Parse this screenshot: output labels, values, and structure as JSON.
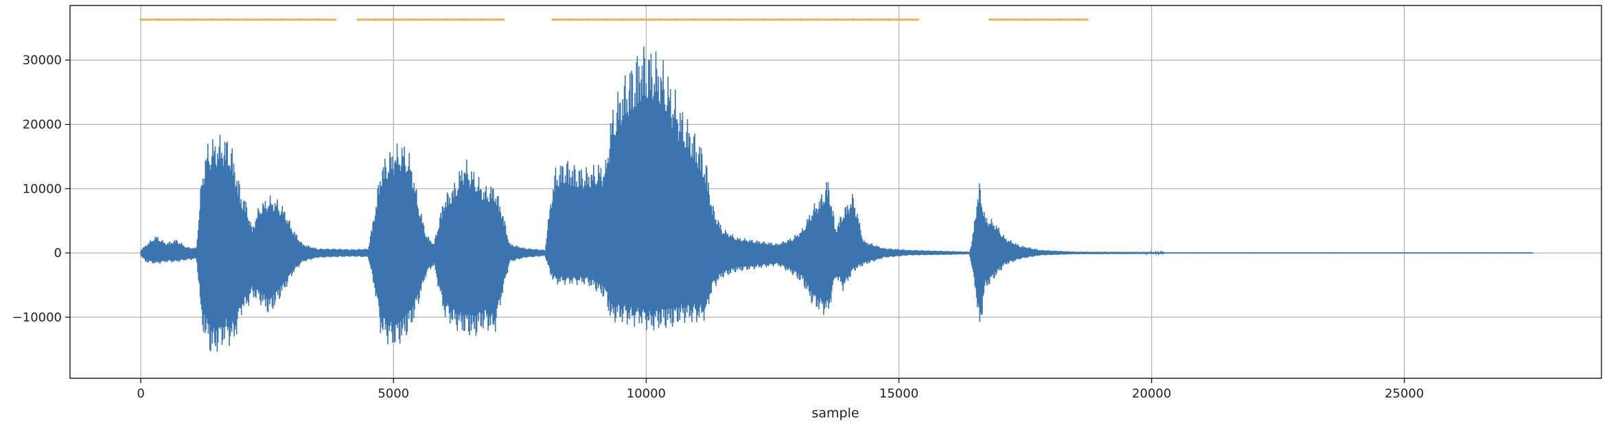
{
  "chart_data": {
    "type": "line",
    "title": "",
    "xlabel": "sample",
    "ylabel": "",
    "xlim": [
      -1400,
      28900
    ],
    "ylim": [
      -19500,
      38500
    ],
    "xticks": [
      0,
      5000,
      10000,
      15000,
      20000,
      25000
    ],
    "xtick_labels": [
      "0",
      "5000",
      "10000",
      "15000",
      "20000",
      "25000"
    ],
    "yticks": [
      -10000,
      0,
      10000,
      20000,
      30000
    ],
    "ytick_labels": [
      "−10000",
      "0",
      "10000",
      "20000",
      "30000"
    ],
    "grid": true,
    "legend": "none",
    "colors": {
      "waveform": "#3b75af",
      "segments": "#f7a737"
    },
    "series": [
      {
        "type": "waveform",
        "color": "#3b75af",
        "x_start": 0,
        "x_end": 27550,
        "envelope": [
          [
            0,
            500,
            -500
          ],
          [
            100,
            1300,
            -1500
          ],
          [
            300,
            2800,
            -1800
          ],
          [
            500,
            1600,
            -1500
          ],
          [
            700,
            2200,
            -1500
          ],
          [
            900,
            1000,
            -1200
          ],
          [
            1100,
            800,
            -1000
          ],
          [
            1150,
            6000,
            -5000
          ],
          [
            1200,
            12000,
            -12000
          ],
          [
            1300,
            17000,
            -14000
          ],
          [
            1400,
            18000,
            -16500
          ],
          [
            1550,
            18500,
            -15500
          ],
          [
            1700,
            18500,
            -14000
          ],
          [
            1800,
            17000,
            -15000
          ],
          [
            1900,
            13000,
            -13000
          ],
          [
            2000,
            9500,
            -9500
          ],
          [
            2100,
            8000,
            -9000
          ],
          [
            2200,
            4000,
            -7000
          ],
          [
            2350,
            7800,
            -8000
          ],
          [
            2550,
            9000,
            -10000
          ],
          [
            2700,
            8500,
            -8000
          ],
          [
            2850,
            7000,
            -6000
          ],
          [
            3000,
            4000,
            -3500
          ],
          [
            3200,
            1500,
            -1500
          ],
          [
            3500,
            700,
            -800
          ],
          [
            3800,
            700,
            -700
          ],
          [
            4200,
            600,
            -600
          ],
          [
            4500,
            700,
            -700
          ],
          [
            4650,
            8000,
            -7000
          ],
          [
            4750,
            14000,
            -13000
          ],
          [
            4900,
            16000,
            -14500
          ],
          [
            5050,
            17000,
            -15000
          ],
          [
            5200,
            17500,
            -14000
          ],
          [
            5350,
            15000,
            -12000
          ],
          [
            5500,
            8000,
            -8000
          ],
          [
            5650,
            3000,
            -3500
          ],
          [
            5800,
            1500,
            -2000
          ],
          [
            6000,
            9000,
            -10000
          ],
          [
            6200,
            11000,
            -12000
          ],
          [
            6400,
            15000,
            -13000
          ],
          [
            6600,
            13000,
            -13500
          ],
          [
            6800,
            10500,
            -12000
          ],
          [
            7000,
            11000,
            -13000
          ],
          [
            7150,
            7000,
            -7000
          ],
          [
            7300,
            1500,
            -1500
          ],
          [
            7600,
            800,
            -800
          ],
          [
            8000,
            500,
            -500
          ],
          [
            8100,
            8000,
            -3500
          ],
          [
            8200,
            13500,
            -5000
          ],
          [
            8400,
            15000,
            -5000
          ],
          [
            8600,
            14000,
            -5000
          ],
          [
            8800,
            13500,
            -5000
          ],
          [
            9000,
            14000,
            -6000
          ],
          [
            9200,
            14500,
            -7500
          ],
          [
            9300,
            22000,
            -11000
          ],
          [
            9500,
            27000,
            -11000
          ],
          [
            9700,
            30000,
            -11500
          ],
          [
            9900,
            33000,
            -11500
          ],
          [
            10100,
            32500,
            -12500
          ],
          [
            10300,
            31000,
            -12000
          ],
          [
            10500,
            27000,
            -12000
          ],
          [
            10700,
            23000,
            -11000
          ],
          [
            10900,
            20000,
            -11000
          ],
          [
            11100,
            17000,
            -11000
          ],
          [
            11200,
            14000,
            -10000
          ],
          [
            11300,
            8000,
            -6000
          ],
          [
            11500,
            4000,
            -4000
          ],
          [
            11800,
            2500,
            -3000
          ],
          [
            12200,
            2000,
            -2500
          ],
          [
            12600,
            1500,
            -2000
          ],
          [
            12900,
            2500,
            -3500
          ],
          [
            13100,
            4000,
            -5000
          ],
          [
            13300,
            7500,
            -8500
          ],
          [
            13450,
            9000,
            -9500
          ],
          [
            13600,
            12000,
            -10000
          ],
          [
            13750,
            4000,
            -4000
          ],
          [
            13900,
            7000,
            -6000
          ],
          [
            14100,
            9500,
            -3000
          ],
          [
            14300,
            2000,
            -2000
          ],
          [
            14700,
            800,
            -800
          ],
          [
            15200,
            500,
            -400
          ],
          [
            16000,
            300,
            -300
          ],
          [
            16400,
            200,
            -200
          ],
          [
            16450,
            2000,
            -3000
          ],
          [
            16500,
            6000,
            -5000
          ],
          [
            16600,
            11500,
            -13000
          ],
          [
            16700,
            6000,
            -6000
          ],
          [
            16900,
            5000,
            -4000
          ],
          [
            17100,
            2500,
            -2000
          ],
          [
            17400,
            1200,
            -1000
          ],
          [
            17800,
            500,
            -400
          ],
          [
            18500,
            200,
            -200
          ],
          [
            20200,
            150,
            -150
          ],
          [
            20250,
            20,
            -20
          ],
          [
            27550,
            20,
            -20
          ]
        ]
      },
      {
        "type": "segments",
        "color": "#f7a737",
        "y": 36300,
        "ranges": [
          [
            0,
            3850
          ],
          [
            4300,
            7200
          ],
          [
            8150,
            15400
          ],
          [
            16800,
            18750
          ]
        ]
      }
    ]
  }
}
